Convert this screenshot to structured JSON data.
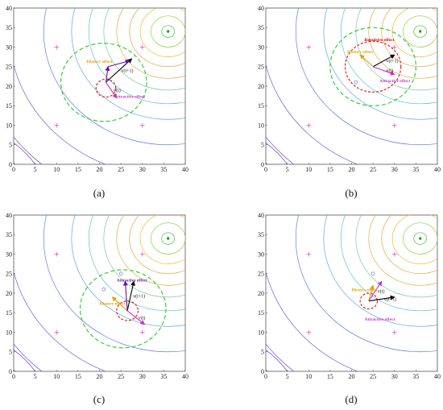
{
  "chart_data": [
    {
      "type": "contour",
      "caption": "(a)",
      "xlim": [
        0,
        40
      ],
      "ylim": [
        0,
        40
      ],
      "xticks": [
        0,
        5,
        10,
        15,
        20,
        25,
        30,
        35,
        40
      ],
      "yticks": [
        0,
        5,
        10,
        15,
        20,
        25,
        30,
        35,
        40
      ],
      "grid": false,
      "target": [
        36,
        34
      ],
      "contour_radii": [
        1.5,
        4,
        6.5,
        9,
        12,
        15,
        18.5,
        22.5,
        29,
        37,
        45
      ],
      "contour_colors": [
        "#3fbf3f",
        "#8fd13a",
        "#e8c030",
        "#f0a040",
        "#d9b040",
        "#7fc8a0",
        "#5fc0d8",
        "#5aa8e0",
        "#5f7fe0",
        "#6a60d8",
        "#6a40c8"
      ],
      "markers": [
        [
          10,
          30
        ],
        [
          30,
          30
        ],
        [
          10,
          10
        ],
        [
          30,
          10
        ]
      ],
      "search_circle": {
        "center": [
          21,
          21
        ],
        "r": 10
      },
      "local_circle": {
        "center": [
          21.5,
          19.5
        ],
        "r": 2.3
      },
      "vectors": [
        {
          "from": [
            21.5,
            21
          ],
          "to": [
            27.5,
            27
          ],
          "color": "#000000",
          "label": "v(t+1)"
        },
        {
          "from": [
            21.5,
            21
          ],
          "to": [
            22,
            25
          ],
          "color": "#6a0dad",
          "label": ""
        },
        {
          "from": [
            22,
            25
          ],
          "to": [
            27,
            26.5
          ],
          "color": "#6a0dad",
          "label": ""
        },
        {
          "from": [
            21.5,
            21
          ],
          "to": [
            24,
            17
          ],
          "color": "#cc3399",
          "label": "v(t)"
        }
      ],
      "annotations": [
        {
          "text": "History effect",
          "at": [
            17,
            26
          ],
          "color": "#e6a000"
        },
        {
          "text": "Attractive effect",
          "at": [
            23.5,
            17
          ],
          "color": "#cc33cc"
        }
      ]
    },
    {
      "type": "contour",
      "caption": "(b)",
      "xlim": [
        0,
        40
      ],
      "ylim": [
        0,
        40
      ],
      "xticks": [
        0,
        5,
        10,
        15,
        20,
        25,
        30,
        35,
        40
      ],
      "yticks": [
        0,
        5,
        10,
        15,
        20,
        25,
        30,
        35,
        40
      ],
      "grid": false,
      "target": [
        36,
        34
      ],
      "contour_radii": [
        1.5,
        4,
        6.5,
        9,
        12,
        15,
        18.5,
        22.5,
        29,
        37,
        45
      ],
      "contour_colors": [
        "#3fbf3f",
        "#8fd13a",
        "#e8c030",
        "#f0a040",
        "#d9b040",
        "#7fc8a0",
        "#5fc0d8",
        "#5aa8e0",
        "#5f7fe0",
        "#6a60d8",
        "#6a40c8"
      ],
      "markers": [
        [
          10,
          30
        ],
        [
          30,
          30
        ],
        [
          10,
          10
        ],
        [
          30,
          10
        ]
      ],
      "search_circle": {
        "center": [
          25,
          25
        ],
        "r": 10
      },
      "local_circle": {
        "center": [
          25,
          25
        ],
        "r": 6.5
      },
      "other_points": [
        [
          21,
          21
        ]
      ],
      "vectors": [
        {
          "from": [
            25,
            25
          ],
          "to": [
            30,
            28
          ],
          "color": "#000000",
          "label": "v(t+1)"
        },
        {
          "from": [
            25,
            25
          ],
          "to": [
            22,
            28
          ],
          "color": "#e6a000",
          "label": ""
        },
        {
          "from": [
            25,
            25
          ],
          "to": [
            30,
            23
          ],
          "color": "#cc33cc",
          "label": "v(t)"
        }
      ],
      "annotations": [
        {
          "text": "Repulsive effect",
          "at": [
            23,
            31.5
          ],
          "color": "#d00000"
        },
        {
          "text": "History effect",
          "at": [
            19,
            28.5
          ],
          "color": "#e6a000"
        },
        {
          "text": "Attractive effect",
          "at": [
            26.5,
            21
          ],
          "color": "#cc33cc"
        }
      ]
    },
    {
      "type": "contour",
      "caption": "(c)",
      "xlim": [
        0,
        40
      ],
      "ylim": [
        0,
        40
      ],
      "xticks": [
        0,
        5,
        10,
        15,
        20,
        25,
        30,
        35,
        40
      ],
      "yticks": [
        0,
        5,
        10,
        15,
        20,
        25,
        30,
        35,
        40
      ],
      "grid": false,
      "target": [
        36,
        34
      ],
      "contour_radii": [
        1.5,
        4,
        6.5,
        9,
        12,
        15,
        18.5,
        22.5,
        29,
        37,
        45
      ],
      "contour_colors": [
        "#3fbf3f",
        "#8fd13a",
        "#e8c030",
        "#f0a040",
        "#d9b040",
        "#7fc8a0",
        "#5fc0d8",
        "#5aa8e0",
        "#5f7fe0",
        "#6a60d8",
        "#6a40c8"
      ],
      "markers": [
        [
          10,
          30
        ],
        [
          30,
          30
        ],
        [
          10,
          10
        ],
        [
          30,
          10
        ]
      ],
      "search_circle": {
        "center": [
          25.5,
          16
        ],
        "r": 10
      },
      "local_circle": {
        "center": [
          26.5,
          15.5
        ],
        "r": 2.5
      },
      "other_points": [
        [
          21,
          21
        ],
        [
          25,
          25
        ]
      ],
      "vectors": [
        {
          "from": [
            26.5,
            15.5
          ],
          "to": [
            28,
            23
          ],
          "color": "#000000",
          "label": "v(t+1)"
        },
        {
          "from": [
            26.5,
            15.5
          ],
          "to": [
            23,
            19
          ],
          "color": "#e6a000",
          "label": ""
        },
        {
          "from": [
            26.5,
            15.5
          ],
          "to": [
            26,
            23
          ],
          "color": "#6a0dad",
          "label": ""
        },
        {
          "from": [
            26.5,
            15.5
          ],
          "to": [
            30.5,
            12
          ],
          "color": "#cc33cc",
          "label": "v(t)"
        }
      ],
      "annotations": [
        {
          "text": "Attractive effect",
          "at": [
            24,
            23
          ],
          "color": "#6a0dad"
        },
        {
          "text": "History effect",
          "at": [
            20,
            17
          ],
          "color": "#e6a000"
        }
      ]
    },
    {
      "type": "contour",
      "caption": "(d)",
      "xlim": [
        0,
        40
      ],
      "ylim": [
        0,
        40
      ],
      "xticks": [
        0,
        5,
        10,
        15,
        20,
        25,
        30,
        35,
        40
      ],
      "yticks": [
        0,
        5,
        10,
        15,
        20,
        25,
        30,
        35,
        40
      ],
      "grid": false,
      "target": [
        36,
        34
      ],
      "contour_radii": [
        1.5,
        4,
        6.5,
        9,
        12,
        15,
        18.5,
        22.5,
        29,
        37,
        45
      ],
      "contour_colors": [
        "#3fbf3f",
        "#8fd13a",
        "#e8c030",
        "#f0a040",
        "#d9b040",
        "#7fc8a0",
        "#5fc0d8",
        "#5aa8e0",
        "#5f7fe0",
        "#6a60d8",
        "#6a40c8"
      ],
      "markers": [
        [
          10,
          30
        ],
        [
          30,
          30
        ],
        [
          10,
          10
        ],
        [
          30,
          10
        ]
      ],
      "local_circle": {
        "center": [
          24,
          18
        ],
        "r": 2
      },
      "other_points": [
        [
          25,
          25
        ]
      ],
      "vectors": [
        {
          "from": [
            24,
            18
          ],
          "to": [
            30,
            19
          ],
          "color": "#000000",
          "label": "v(t+1)"
        },
        {
          "from": [
            24,
            18
          ],
          "to": [
            25,
            22
          ],
          "color": "#e6a000",
          "label": ""
        },
        {
          "from": [
            24,
            18
          ],
          "to": [
            27,
            23
          ],
          "color": "#cc33cc",
          "label": "v(t)"
        }
      ],
      "annotations": [
        {
          "text": "History effect",
          "at": [
            20,
            20.5
          ],
          "color": "#e6a000"
        },
        {
          "text": "Attractive effect",
          "at": [
            23,
            13
          ],
          "color": "#cc33cc"
        }
      ]
    }
  ]
}
